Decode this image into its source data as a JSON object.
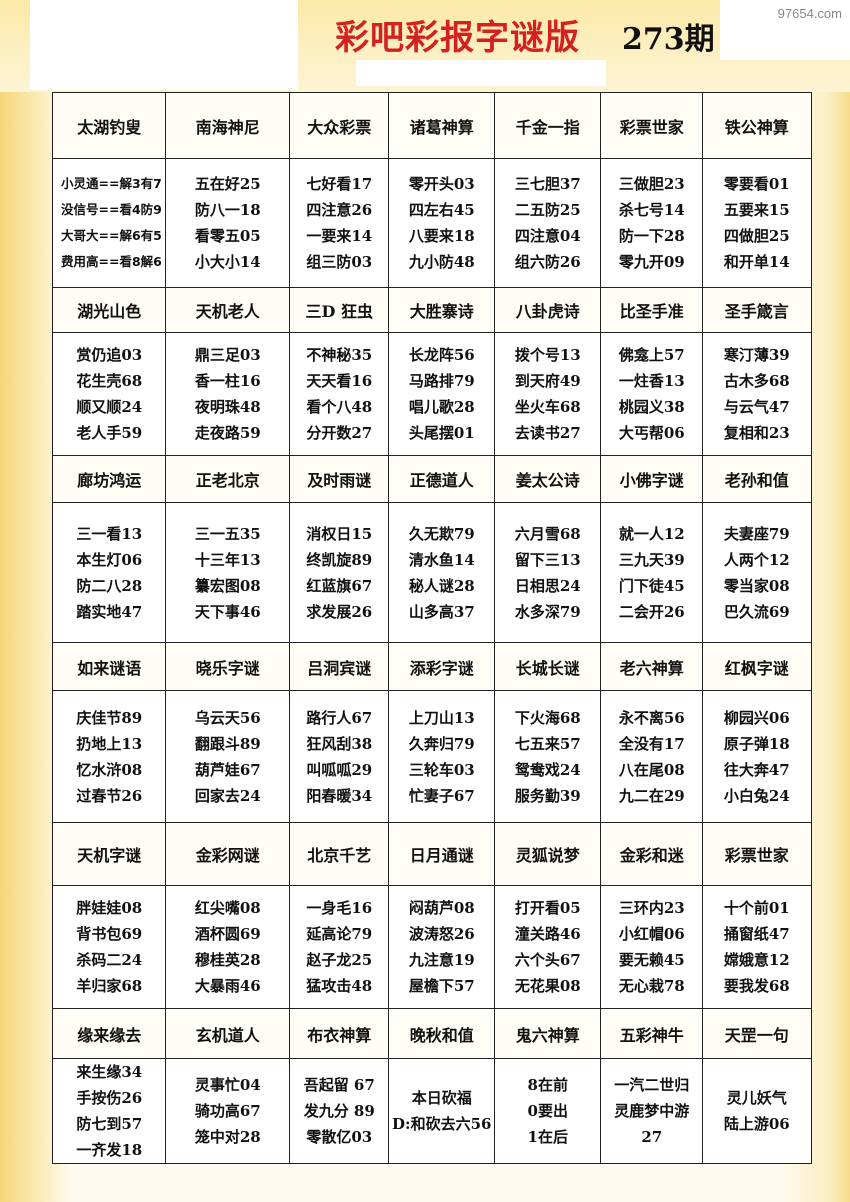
{
  "header": {
    "title": "彩吧彩报字谜版",
    "issue": "273期"
  },
  "watermark": "97654.com",
  "table": {
    "blocks": [
      {
        "headers": [
          "太湖钓叟",
          "南海神尼",
          "大众彩票",
          "诸葛神算",
          "千金一指",
          "彩票世家",
          "铁公神算"
        ],
        "cells": [
          [
            "小灵通==解3有7",
            "没信号==看4防9",
            "大哥大==解6有5",
            "费用高==看8解6"
          ],
          [
            "五在好25",
            "防八一18",
            "看零五05",
            "小大小14"
          ],
          [
            "七好看17",
            "四注意26",
            "一要来14",
            "组三防03"
          ],
          [
            "零开头03",
            "四左右45",
            "八要来18",
            "九小防48"
          ],
          [
            "三七胆37",
            "二五防25",
            "四注意04",
            "组六防26"
          ],
          [
            "三做胆23",
            "杀七号14",
            "防一下28",
            "零九开09"
          ],
          [
            "零要看01",
            "五要来15",
            "四做胆25",
            "和开单14"
          ]
        ]
      },
      {
        "headers": [
          "湖光山色",
          "天机老人",
          "三D 狂虫",
          "大胜寨诗",
          "八卦虎诗",
          "比圣手准",
          "圣手箴言"
        ],
        "cells": [
          [
            "赏仍追03",
            "花生壳68",
            "顺又顺24",
            "老人手59"
          ],
          [
            "鼎三足03",
            "香一柱16",
            "夜明珠48",
            "走夜路59"
          ],
          [
            "不神秘35",
            "天天看16",
            "看个八48",
            "分开数27"
          ],
          [
            "长龙阵56",
            "马路排79",
            "唱儿歌28",
            "头尾摆01"
          ],
          [
            "拨个号13",
            "到天府49",
            "坐火车68",
            "去读书27"
          ],
          [
            "佛龛上57",
            "一炷香13",
            "桃园义38",
            "大丐帮06"
          ],
          [
            "寒汀薄39",
            "古木多68",
            "与云气47",
            "复相和23"
          ]
        ]
      },
      {
        "headers": [
          "廊坊鸿运",
          "正老北京",
          "及时雨谜",
          "正德道人",
          "姜太公诗",
          "小佛字谜",
          "老孙和值"
        ],
        "cells": [
          [
            "三一看13",
            "本生灯06",
            "防二八28",
            "踏实地47"
          ],
          [
            "三一五35",
            "十三年13",
            "纂宏图08",
            "天下事46"
          ],
          [
            "消权日15",
            "终凯旋89",
            "红蓝旗67",
            "求发展26"
          ],
          [
            "久无欺79",
            "清水鱼14",
            "秘人谜28",
            "山多高37"
          ],
          [
            "六月雪68",
            "留下三13",
            "日相思24",
            "水多深79"
          ],
          [
            "就一人12",
            "三九天39",
            "门下徒45",
            "二会开26"
          ],
          [
            "夫妻座79",
            "人两个12",
            "零当家08",
            "巴久流69"
          ]
        ]
      },
      {
        "headers": [
          "如来谜语",
          "晓乐字谜",
          "吕洞宾谜",
          "添彩字谜",
          "长城长谜",
          "老六神算",
          "红枫字谜"
        ],
        "cells": [
          [
            "庆佳节89",
            "扔地上13",
            "忆水浒08",
            "过春节26"
          ],
          [
            "乌云天56",
            "翻跟斗89",
            "葫芦娃67",
            "回家去24"
          ],
          [
            "路行人67",
            "狂风刮38",
            "叫呱呱29",
            "阳春暖34"
          ],
          [
            "上刀山13",
            "久奔归79",
            "三轮车03",
            "忙妻子67"
          ],
          [
            "下火海68",
            "七五来57",
            "鸳鸯戏24",
            "服务勤39"
          ],
          [
            "永不离56",
            "全没有17",
            "八在尾08",
            "九二在29"
          ],
          [
            "柳园兴06",
            "原子弹18",
            "往大奔47",
            "小白兔24"
          ]
        ]
      },
      {
        "headers": [
          "天机字谜",
          "金彩网谜",
          "北京千艺",
          "日月通谜",
          "灵狐说梦",
          "金彩和迷",
          "彩票世家"
        ],
        "cells": [
          [
            "胖娃娃08",
            "背书包69",
            "杀码二24",
            "羊归家68"
          ],
          [
            "红尖嘴08",
            "酒杯圆69",
            "穆桂英28",
            "大暴雨46"
          ],
          [
            "一身毛16",
            "延高论79",
            "赵子龙25",
            "猛攻击48"
          ],
          [
            "闷葫芦08",
            "波涛怒26",
            "九注意19",
            "屋檐下57"
          ],
          [
            "打开看05",
            "潼关路46",
            "六个头67",
            "无花果08"
          ],
          [
            "三环内23",
            "小红帽06",
            "要无赖45",
            "无心栽78"
          ],
          [
            "十个前01",
            "捅窗纸47",
            "嫦娥意12",
            "要我发68"
          ]
        ]
      },
      {
        "headers": [
          "缘来缘去",
          "玄机道人",
          "布衣神算",
          "晚秋和值",
          "鬼六神算",
          "五彩神牛",
          "天罡一句"
        ],
        "cells": [
          [
            "来生缘34",
            "手按伤26",
            "防七到57",
            "一齐发18"
          ],
          [
            "灵事忙04",
            "骑功高67",
            "笼中对28"
          ],
          [
            "吾起留 67",
            "发九分 89",
            "零散亿03"
          ],
          [
            "本日砍福",
            "D:和砍去六56"
          ],
          [
            "8在前",
            "0要出",
            "1在后"
          ],
          [
            "一汽二世归",
            "灵鹿梦中游",
            "27"
          ],
          [
            "灵儿妖气",
            "陆上游06"
          ]
        ]
      }
    ]
  }
}
